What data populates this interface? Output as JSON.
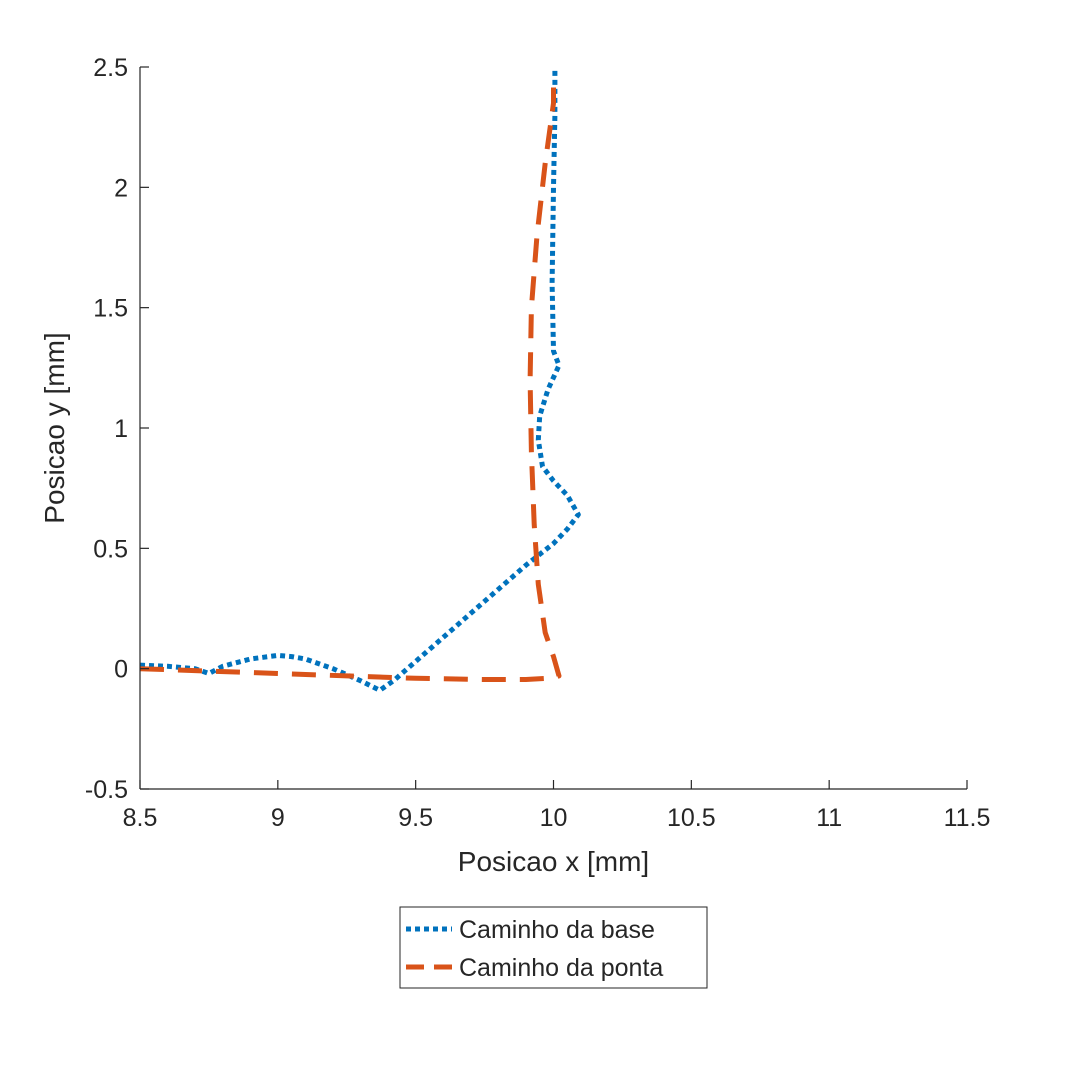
{
  "chart_data": {
    "type": "line",
    "title": "",
    "xlabel": "Posicao x [mm]",
    "ylabel": "Posicao y [mm]",
    "xlim": [
      8.5,
      11.5
    ],
    "ylim": [
      -0.5,
      2.5
    ],
    "xticks": [
      8.5,
      9,
      9.5,
      10,
      10.5,
      11,
      11.5
    ],
    "xtick_labels": [
      "8.5",
      "9",
      "9.5",
      "10",
      "10.5",
      "11",
      "11.5"
    ],
    "yticks": [
      -0.5,
      0,
      0.5,
      1,
      1.5,
      2,
      2.5
    ],
    "ytick_labels": [
      "-0.5",
      "0",
      "0.5",
      "1",
      "1.5",
      "2",
      "2.5"
    ],
    "grid": false,
    "legend_position": "bottom-outside",
    "series": [
      {
        "name": "Caminho da base",
        "color": "#0072BD",
        "style": "dotted",
        "x": [
          8.5,
          8.6,
          8.7,
          8.75,
          8.8,
          8.9,
          9.0,
          9.05,
          9.1,
          9.2,
          9.3,
          9.37,
          9.42,
          9.5,
          9.6,
          9.7,
          9.8,
          9.9,
          10.0,
          10.05,
          10.09,
          10.05,
          10.0,
          9.96,
          9.945,
          9.95,
          9.98,
          10.02,
          10.0,
          9.995,
          10.0,
          10.005,
          10.005
        ],
        "y": [
          0.015,
          0.01,
          0.0,
          -0.02,
          0.01,
          0.04,
          0.055,
          0.05,
          0.04,
          0.0,
          -0.05,
          -0.09,
          -0.05,
          0.03,
          0.13,
          0.23,
          0.33,
          0.43,
          0.52,
          0.58,
          0.64,
          0.72,
          0.78,
          0.84,
          0.95,
          1.05,
          1.16,
          1.26,
          1.32,
          1.6,
          2.0,
          2.3,
          2.5
        ]
      },
      {
        "name": "Caminho da ponta",
        "color": "#D95319",
        "style": "dashed",
        "x": [
          8.5,
          8.75,
          9.0,
          9.25,
          9.5,
          9.75,
          9.9,
          9.98,
          10.02,
          10.0,
          9.97,
          9.945,
          9.93,
          9.92,
          9.915,
          9.92,
          9.94,
          9.97,
          10.0,
          10.0
        ],
        "y": [
          0.0,
          -0.01,
          -0.02,
          -0.03,
          -0.04,
          -0.045,
          -0.045,
          -0.04,
          -0.03,
          0.05,
          0.15,
          0.35,
          0.6,
          0.9,
          1.2,
          1.5,
          1.8,
          2.1,
          2.35,
          2.45
        ]
      }
    ]
  }
}
